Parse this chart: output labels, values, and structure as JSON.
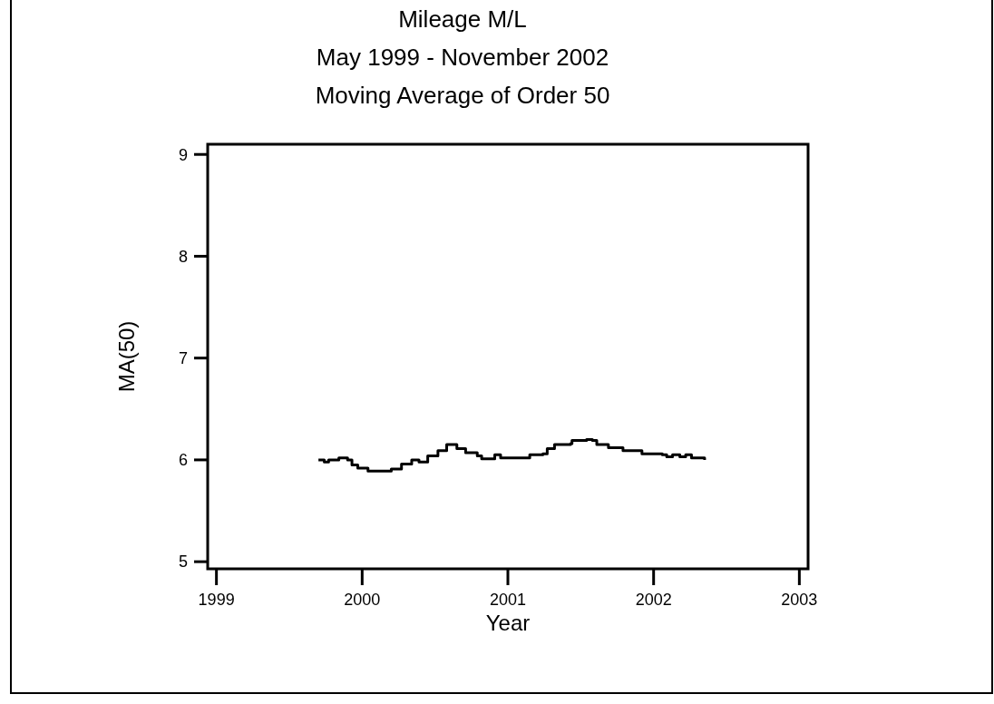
{
  "chart_data": {
    "type": "step",
    "title": "Mileage M/L",
    "subtitle": "May 1999 - November 2002\nMoving Average of Order 50",
    "xlabel": "Year",
    "ylabel": "MA(50)",
    "xlim": [
      1998.94,
      2003.06
    ],
    "xticks": [
      1999,
      2000,
      2001,
      2002,
      2003
    ],
    "ylim": [
      4.93,
      9.1
    ],
    "yticks": [
      5,
      6,
      7,
      8,
      9
    ],
    "grid": false,
    "line_style": "solid",
    "marker": "none",
    "x": [
      1999.7,
      1999.74,
      1999.77,
      1999.84,
      1999.9,
      1999.93,
      1999.97,
      2000.04,
      2000.2,
      2000.27,
      2000.34,
      2000.39,
      2000.45,
      2000.52,
      2000.58,
      2000.62,
      2000.65,
      2000.71,
      2000.79,
      2000.82,
      2000.91,
      2000.95,
      2001.14,
      2001.15,
      2001.24,
      2001.27,
      2001.32,
      2001.43,
      2001.44,
      2001.54,
      2001.58,
      2001.61,
      2001.69,
      2001.79,
      2001.92,
      2002.06,
      2002.09,
      2002.13,
      2002.18,
      2002.22,
      2002.26,
      2002.35
    ],
    "series": [
      {
        "color": "#000000",
        "values": [
          6.0,
          5.98,
          6.0,
          6.02,
          6.0,
          5.95,
          5.92,
          5.89,
          5.91,
          5.96,
          6.0,
          5.98,
          6.04,
          6.09,
          6.15,
          6.15,
          6.11,
          6.07,
          6.04,
          6.01,
          6.05,
          6.02,
          6.02,
          6.05,
          6.06,
          6.11,
          6.15,
          6.16,
          6.19,
          6.2,
          6.19,
          6.15,
          6.12,
          6.09,
          6.06,
          6.05,
          6.03,
          6.05,
          6.03,
          6.05,
          6.02,
          6.0
        ]
      }
    ]
  }
}
